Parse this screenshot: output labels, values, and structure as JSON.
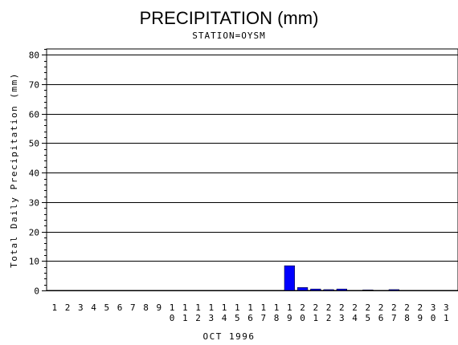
{
  "chart_data": {
    "type": "bar",
    "title": "PRECIPITATION (mm)",
    "subtitle": "STATION=OYSM",
    "xlabel": "OCT 1996",
    "ylabel": "Total Daily Precipitation (mm)",
    "ylim": [
      0,
      82
    ],
    "yticks": [
      0,
      10,
      20,
      30,
      40,
      50,
      60,
      70,
      80
    ],
    "grid": true,
    "bar_color": "#0000ff",
    "categories": [
      "1",
      "2",
      "3",
      "4",
      "5",
      "6",
      "7",
      "8",
      "9",
      "10",
      "11",
      "12",
      "13",
      "14",
      "15",
      "16",
      "17",
      "18",
      "19",
      "20",
      "21",
      "22",
      "23",
      "24",
      "25",
      "26",
      "27",
      "28",
      "29",
      "30",
      "31"
    ],
    "values": [
      0,
      0,
      0,
      0,
      0,
      0,
      0,
      0,
      0,
      0,
      0,
      0,
      0,
      0,
      0,
      0,
      0,
      0,
      8.4,
      1.0,
      0.5,
      0.3,
      0.5,
      0,
      0.2,
      0,
      0.3,
      0,
      0,
      0,
      0
    ]
  }
}
